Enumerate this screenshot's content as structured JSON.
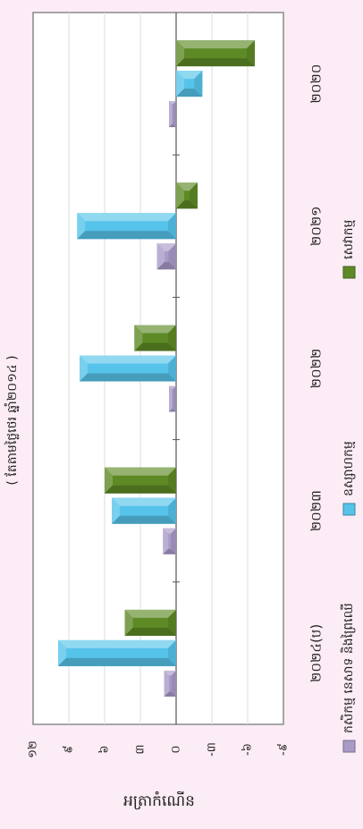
{
  "chart_data": {
    "type": "bar",
    "orientation": "horizontal (figure rotated 90°)",
    "title": "( តែតាមថ្លៃថេរ ឆ្នាំ២០១៤ )",
    "ylabel": "អត្រាកំណើន",
    "categories": [
      "២០២០",
      "២០២១",
      "២០២២",
      "២០២៣",
      "២០២៤(ប)"
    ],
    "ylim": [
      -9,
      12
    ],
    "yticks": [
      "១២",
      "៩",
      "៦",
      "៣",
      "០",
      "-៣",
      "-៦",
      "-៩"
    ],
    "yticks_values": [
      12,
      9,
      6,
      3,
      0,
      -3,
      -6,
      -9
    ],
    "grid": true,
    "legend_position": "bottom",
    "series": [
      {
        "name": "កសិកម្ម នេសាទ និងព្រៃឈើ",
        "color": "#a99bc8",
        "values": [
          0.6,
          1.6,
          0.6,
          1.1,
          1.0
        ]
      },
      {
        "name": "ឧស្សាហកម្ម",
        "color": "#56c3ea",
        "values": [
          -2.2,
          8.3,
          8.1,
          5.4,
          9.9
        ]
      },
      {
        "name": "សេវាកម្ម",
        "color": "#5e8a26",
        "values": [
          -6.6,
          -1.8,
          3.5,
          6.0,
          4.3
        ]
      }
    ]
  }
}
